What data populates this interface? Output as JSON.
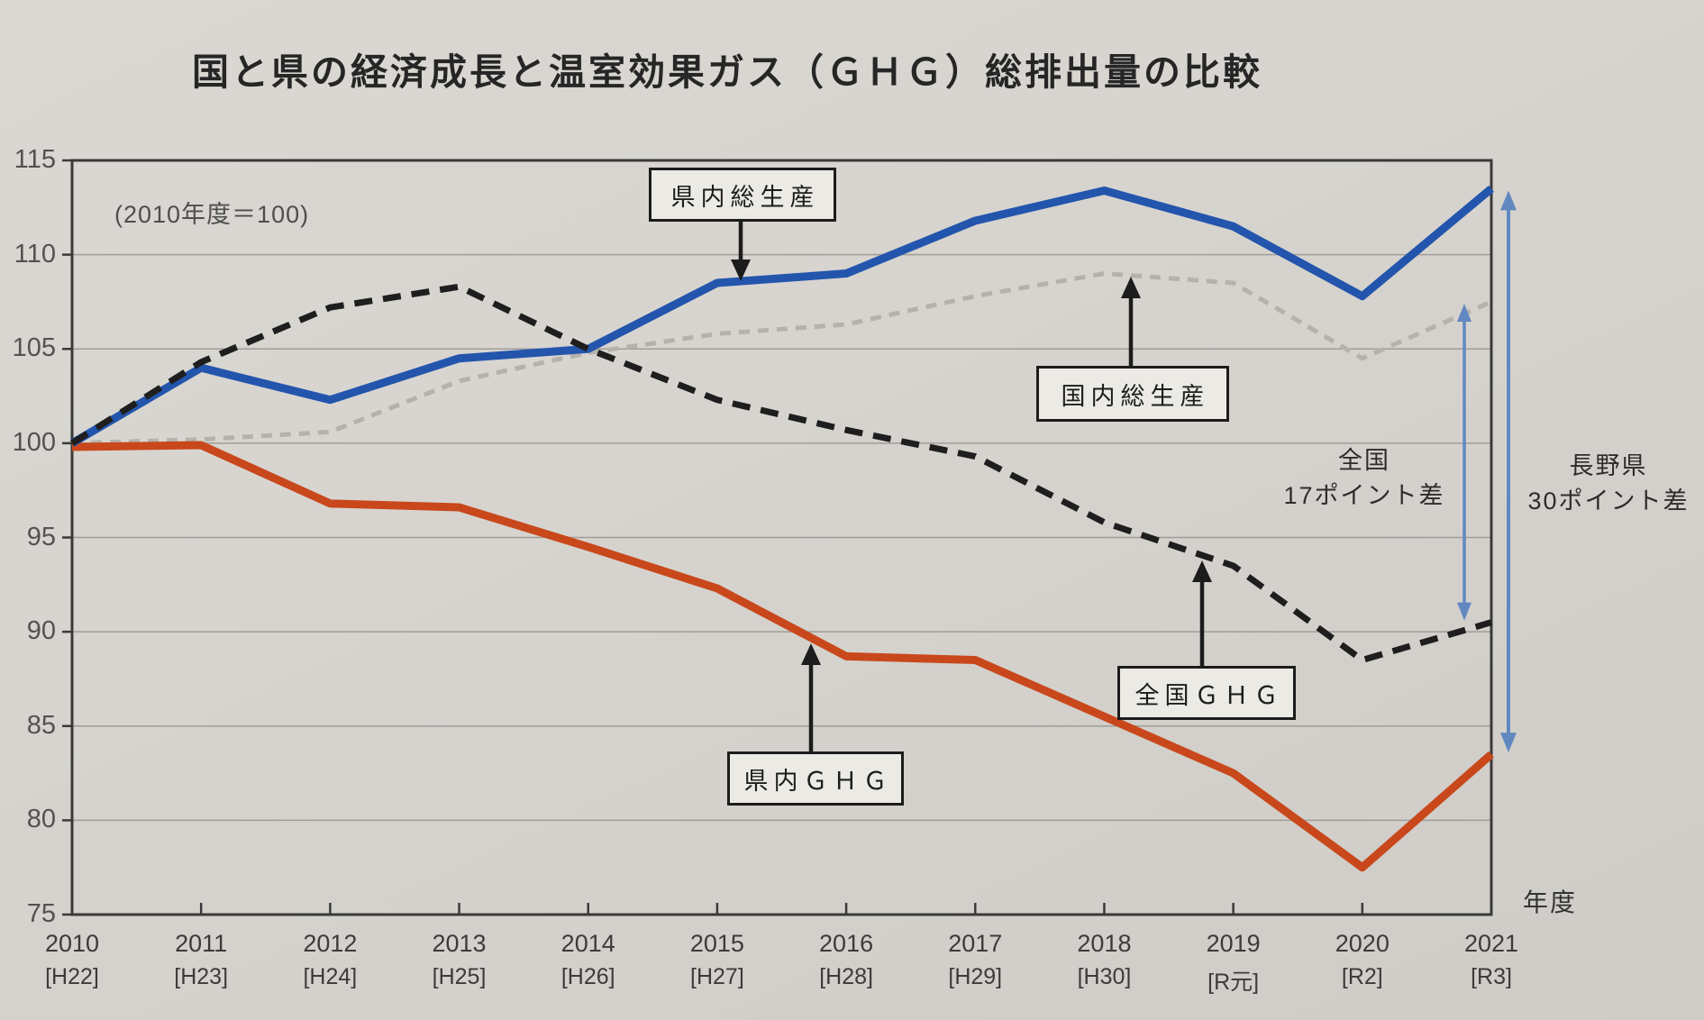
{
  "title": "国と県の経済成長と温室効果ガス（ＧＨＧ）総排出量の比較",
  "note": "(2010年度＝100)",
  "axis_unit": "年度",
  "annotations": {
    "national_gap": {
      "line1": "全国",
      "line2": "17ポイント差"
    },
    "nagano_gap": {
      "line1": "長野県",
      "line2": "30ポイント差"
    }
  },
  "colors": {
    "paper": "#d6d3ce",
    "frame": "#3a3a3a",
    "grid": "#a09d98",
    "callout_arrow": "#1c1c1c",
    "measure_arrow": "#6288c2"
  },
  "chart_data": {
    "type": "line",
    "title": "国と県の経済成長と温室効果ガス（ＧＨＧ）総排出量の比較",
    "index_note": "2010年度＝100",
    "xlabel": "年度",
    "ylabel": "",
    "ylim": [
      75,
      115
    ],
    "grid": true,
    "legend_position": "inline-callouts",
    "x_years": [
      "2010",
      "2011",
      "2012",
      "2013",
      "2014",
      "2015",
      "2016",
      "2017",
      "2018",
      "2019",
      "2020",
      "2021"
    ],
    "x_era": [
      "[H22]",
      "[H23]",
      "[H24]",
      "[H25]",
      "[H26]",
      "[H27]",
      "[H28]",
      "[H29]",
      "[H30]",
      "[R元]",
      "[R2]",
      "[R3]"
    ],
    "y_ticks": [
      75,
      80,
      85,
      90,
      95,
      100,
      105,
      110,
      115
    ],
    "series": [
      {
        "name": "県内総生産",
        "style": "solid",
        "color": "#2355ad",
        "values": [
          100,
          104,
          102.3,
          104.5,
          105,
          108.5,
          109,
          111.8,
          113.4,
          111.5,
          107.8,
          113.5
        ]
      },
      {
        "name": "国内総生産",
        "style": "dashed",
        "color": "#b5b1ab",
        "values": [
          100,
          100.2,
          100.6,
          103.3,
          104.8,
          105.8,
          106.3,
          107.8,
          109,
          108.5,
          104.5,
          107.5
        ]
      },
      {
        "name": "全国ＧＨＧ",
        "style": "dashed",
        "color": "#1e1e1e",
        "values": [
          100,
          104.3,
          107.2,
          108.3,
          105,
          102.3,
          100.7,
          99.3,
          95.8,
          93.5,
          88.5,
          90.5
        ]
      },
      {
        "name": "県内ＧＨＧ",
        "style": "solid",
        "color": "#c8481c",
        "values": [
          99.8,
          99.9,
          96.8,
          96.6,
          94.5,
          92.3,
          88.7,
          88.5,
          85.5,
          82.5,
          77.5,
          83.5
        ]
      }
    ],
    "gap_annotations": [
      {
        "label": "全国 17ポイント差",
        "between": [
          "国内総生産",
          "全国ＧＨＧ"
        ],
        "at_year": "2021",
        "points": 17
      },
      {
        "label": "長野県 30ポイント差",
        "between": [
          "県内総生産",
          "県内ＧＨＧ"
        ],
        "at_year": "2021",
        "points": 30
      }
    ]
  }
}
